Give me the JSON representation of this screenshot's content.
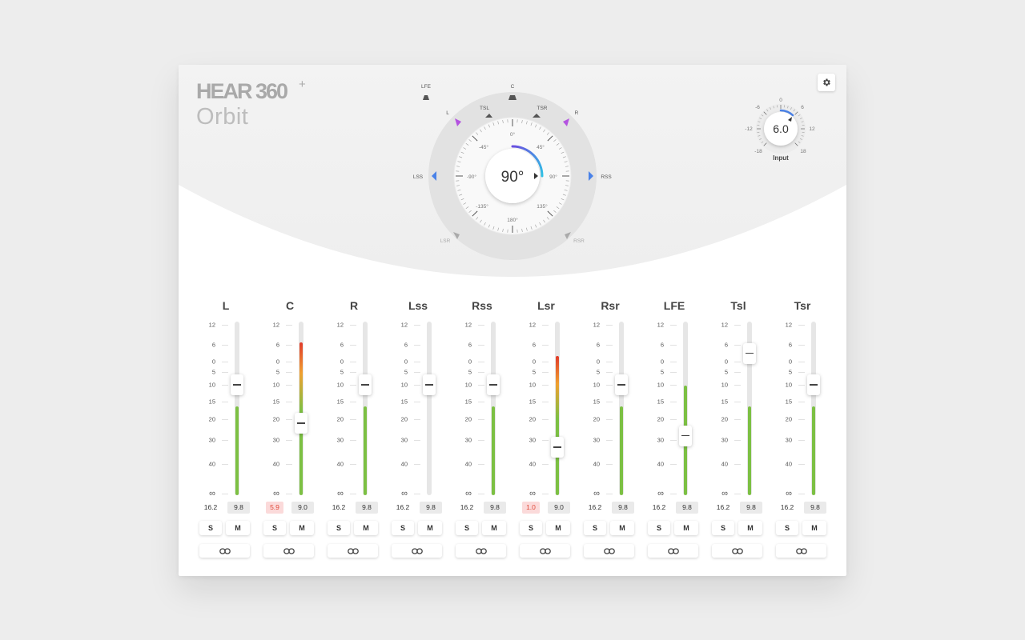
{
  "app": {
    "logo_main": "HEAR 360",
    "logo_plus": "+",
    "logo_sub": "Orbit"
  },
  "colors": {
    "accent_blue": "#4a82e8",
    "accent_purple": "#b453e0",
    "meter_green": "#7cc043",
    "meter_red": "#e03a2a",
    "knob_gradient_start": "#6a4ee0",
    "knob_gradient_end": "#2fc4e8"
  },
  "orbit": {
    "angle_display": "90°",
    "angle_value": 90,
    "dial_labels": [
      "0°",
      "45°",
      "90°",
      "135°",
      "180°",
      "-135°",
      "-90°",
      "-45°"
    ],
    "speakers": [
      {
        "label": "LFE",
        "color": "gray"
      },
      {
        "label": "C",
        "color": "gray"
      },
      {
        "label": "L",
        "color": "purple"
      },
      {
        "label": "TSL",
        "color": "gray"
      },
      {
        "label": "TSR",
        "color": "gray"
      },
      {
        "label": "R",
        "color": "purple"
      },
      {
        "label": "LSS",
        "color": "blue"
      },
      {
        "label": "RSS",
        "color": "blue"
      },
      {
        "label": "LSR",
        "color": "lightgray"
      },
      {
        "label": "RSR",
        "color": "lightgray"
      }
    ]
  },
  "input": {
    "value_display": "6.0",
    "value": 6,
    "label": "Input",
    "scale": [
      "-6",
      "0",
      "6",
      "-12",
      "12",
      "-18",
      "18"
    ]
  },
  "fader_scale": [
    "12",
    "6",
    "0",
    "5",
    "10",
    "15",
    "20",
    "30",
    "40",
    "∞"
  ],
  "channels": [
    {
      "name": "L",
      "fader_db": 10,
      "meter_level": 0.51,
      "meter_clip": false,
      "peak": "16.2",
      "level": "9.8",
      "peak_clip": false,
      "solo": "S",
      "mute": "M"
    },
    {
      "name": "C",
      "fader_db": 22,
      "meter_level": 0.88,
      "meter_clip": true,
      "peak": "5.9",
      "level": "9.0",
      "peak_clip": true,
      "solo": "S",
      "mute": "M"
    },
    {
      "name": "R",
      "fader_db": 10,
      "meter_level": 0.51,
      "meter_clip": false,
      "peak": "16.2",
      "level": "9.8",
      "peak_clip": false,
      "solo": "S",
      "mute": "M"
    },
    {
      "name": "Lss",
      "fader_db": 10,
      "meter_level": 0.0,
      "meter_clip": false,
      "peak": "16.2",
      "level": "9.8",
      "peak_clip": false,
      "solo": "S",
      "mute": "M"
    },
    {
      "name": "Rss",
      "fader_db": 10,
      "meter_level": 0.51,
      "meter_clip": false,
      "peak": "16.2",
      "level": "9.8",
      "peak_clip": false,
      "solo": "S",
      "mute": "M"
    },
    {
      "name": "Lsr",
      "fader_db": 33,
      "meter_level": 0.8,
      "meter_clip": true,
      "peak": "1.0",
      "level": "9.0",
      "peak_clip": true,
      "solo": "S",
      "mute": "M"
    },
    {
      "name": "Rsr",
      "fader_db": 10,
      "meter_level": 0.51,
      "meter_clip": false,
      "peak": "16.2",
      "level": "9.8",
      "peak_clip": false,
      "solo": "S",
      "mute": "M"
    },
    {
      "name": "LFE",
      "fader_db": 28,
      "meter_level": 0.63,
      "meter_clip": false,
      "peak": "16.2",
      "level": "9.8",
      "peak_clip": false,
      "solo": "S",
      "mute": "M"
    },
    {
      "name": "Tsl",
      "fader_db": -3,
      "meter_level": 0.51,
      "meter_clip": false,
      "peak": "16.2",
      "level": "9.8",
      "peak_clip": false,
      "solo": "S",
      "mute": "M"
    },
    {
      "name": "Tsr",
      "fader_db": 10,
      "meter_level": 0.51,
      "meter_clip": false,
      "peak": "16.2",
      "level": "9.8",
      "peak_clip": false,
      "solo": "S",
      "mute": "M"
    }
  ]
}
